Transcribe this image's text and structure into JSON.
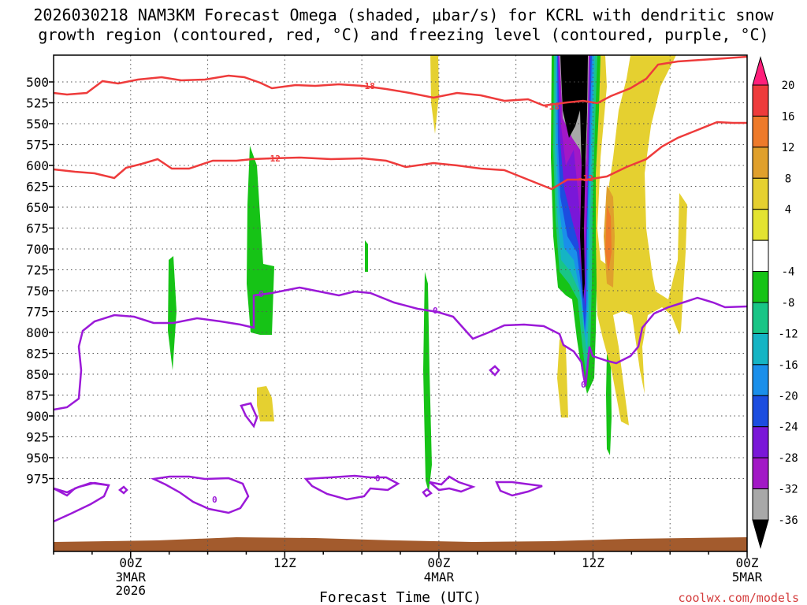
{
  "chart_data": {
    "type": "heatmap",
    "title_line1": "2026030218 NAM3KM Forecast Omega (shaded, μbar/s) for KCRL with dendritic snow",
    "title_line2": "growth region (contoured, red, °C) and freezing level (contoured, purple, °C)",
    "xlabel": "Forecast Time (UTC)",
    "credit": "coolwx.com/models",
    "x_hours_range": [
      -6,
      48
    ],
    "y_levels": [
      "500",
      "525",
      "550",
      "575",
      "600",
      "625",
      "650",
      "675",
      "700",
      "725",
      "750",
      "775",
      "800",
      "825",
      "850",
      "875",
      "900",
      "925",
      "950",
      "975"
    ],
    "x_ticks": [
      {
        "hour": 0,
        "label": "00Z",
        "sub": [
          "3MAR",
          "2026"
        ]
      },
      {
        "hour": 12,
        "label": "12Z",
        "sub": []
      },
      {
        "hour": 24,
        "label": "00Z",
        "sub": [
          "4MAR"
        ]
      },
      {
        "hour": 36,
        "label": "12Z",
        "sub": []
      },
      {
        "hour": 48,
        "label": "00Z",
        "sub": [
          "5MAR"
        ]
      }
    ],
    "colorbar": {
      "labels": [
        "20",
        "16",
        "12",
        "8",
        "4",
        "-4",
        "-8",
        "-12",
        "-16",
        "-20",
        "-24",
        "-28",
        "-32",
        "-36"
      ],
      "colors": [
        "#ff1f7a",
        "#ee3b3b",
        "#ee7a2a",
        "#e0a02c",
        "#e5d030",
        "#e3e331",
        "#ffffff",
        "#16c316",
        "#19c586",
        "#15b4c4",
        "#1a8fea",
        "#1c4de0",
        "#7a17d8",
        "#a218c6",
        "#a8a8a8",
        "#000000"
      ]
    },
    "red_contour_labels": [
      "-18",
      "-12"
    ],
    "purple_contour_label": "0",
    "ground_color": "#a35b2d"
  }
}
